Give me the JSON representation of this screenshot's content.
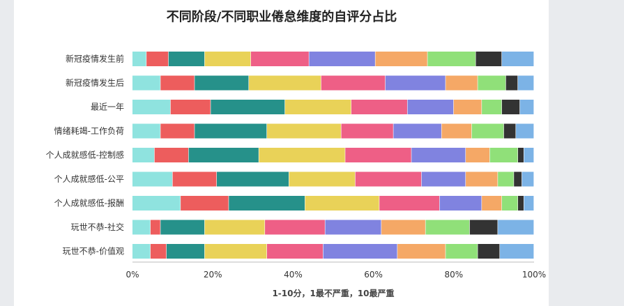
{
  "chart_data": {
    "type": "bar",
    "orientation": "horizontal",
    "stacked": "percent",
    "title": "不同阶段/不同职业倦怠维度的自评分占比",
    "xlabel": "1-10分，1最不严重，10最严重",
    "ylabel": "",
    "xlim": [
      0,
      100
    ],
    "x_ticks": [
      "0%",
      "20%",
      "40%",
      "60%",
      "80%",
      "100%"
    ],
    "grid": false,
    "legend": "none",
    "categories": [
      "新冠疫情发生前",
      "新冠疫情发生后",
      "最近一年",
      "情绪耗竭-工作负荷",
      "个人成就感低-控制感",
      "个人成就感低-公平",
      "个人成就感低-报酬",
      "玩世不恭-社交",
      "玩世不恭-价值观"
    ],
    "series": [
      {
        "color": "#8fe3df",
        "values": [
          3.5,
          7,
          9.5,
          7,
          5.5,
          10,
          12,
          4.5,
          4.5
        ]
      },
      {
        "color": "#ed5d5d",
        "values": [
          5.5,
          8.5,
          10,
          8.5,
          8.5,
          11,
          12,
          2.5,
          4
        ]
      },
      {
        "color": "#26918a",
        "values": [
          9,
          13.5,
          18.5,
          18,
          17.5,
          18,
          19,
          11,
          9.5
        ]
      },
      {
        "color": "#e9d258",
        "values": [
          11.5,
          18,
          16.5,
          18.5,
          21.5,
          16.5,
          18.5,
          15,
          15.5
        ]
      },
      {
        "color": "#ee5f86",
        "values": [
          14.5,
          16,
          14,
          13,
          16.5,
          16.5,
          15,
          15,
          14
        ]
      },
      {
        "color": "#8083e0",
        "values": [
          16.5,
          15,
          11.5,
          12,
          13.5,
          11,
          10.5,
          14,
          18.5
        ]
      },
      {
        "color": "#f5a866",
        "values": [
          13,
          8,
          7,
          7.5,
          6,
          8,
          5,
          11,
          12
        ]
      },
      {
        "color": "#90e079",
        "values": [
          12,
          7,
          5,
          8,
          7,
          4,
          4,
          11,
          8
        ]
      },
      {
        "color": "#333333",
        "values": [
          6.5,
          3,
          4.5,
          3,
          1.5,
          2,
          1.5,
          7,
          5.5
        ]
      },
      {
        "color": "#7cb3e6",
        "values": [
          8,
          4,
          3.5,
          4.5,
          2.5,
          3,
          2.5,
          9,
          8.5
        ]
      }
    ]
  }
}
